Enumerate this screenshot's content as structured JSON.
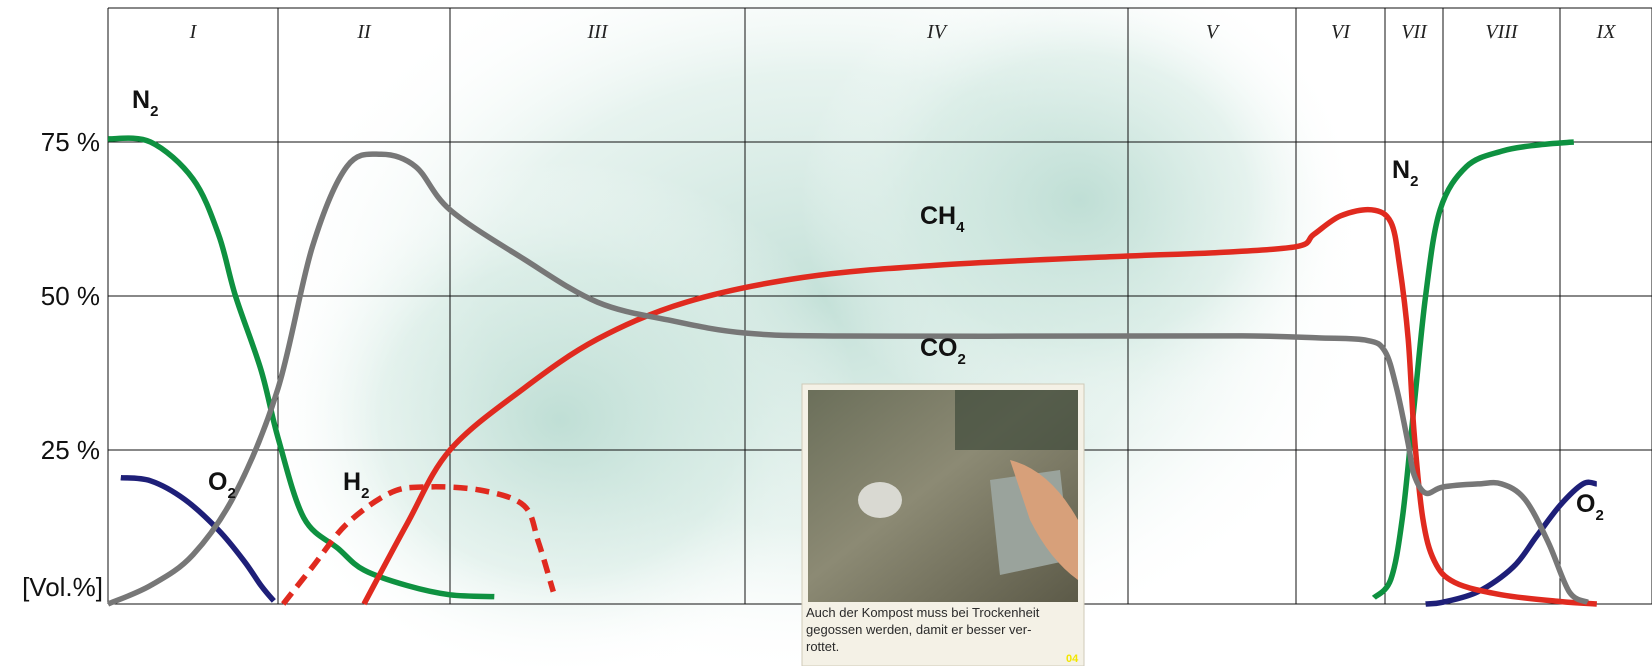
{
  "chart_data": {
    "type": "line",
    "title": "",
    "y_unit_label": "[Vol.%]",
    "y_ticks": [
      {
        "value": 25,
        "label": "25 %"
      },
      {
        "value": 50,
        "label": "50 %"
      },
      {
        "value": 75,
        "label": "75 %"
      }
    ],
    "ylim": [
      0,
      100
    ],
    "x_label": "",
    "phases": [
      "I",
      "II",
      "III",
      "IV",
      "V",
      "VI",
      "VII",
      "VIII",
      "IX"
    ],
    "x_unit": "phase position (0 = start of phase I, 9 = end of phase IX)",
    "grid": true,
    "series": [
      {
        "name": "N2",
        "label_main": "N",
        "label_sub": "2",
        "color": "#0e9140",
        "style": "solid",
        "points": [
          [
            0.0,
            75.5
          ],
          [
            0.5,
            75
          ],
          [
            1.0,
            69
          ],
          [
            1.3,
            60
          ],
          [
            1.5,
            50
          ],
          [
            1.8,
            38
          ],
          [
            2.0,
            27
          ],
          [
            2.3,
            14
          ],
          [
            2.7,
            9
          ],
          [
            3.0,
            5.5
          ],
          [
            3.5,
            3
          ],
          [
            4.0,
            1.5
          ],
          [
            4.3,
            1.2
          ]
        ]
      },
      {
        "name": "N2",
        "label_main": "N",
        "label_sub": "2",
        "color": "#0e9140",
        "style": "solid",
        "points": [
          [
            11.75,
            1
          ],
          [
            12.2,
            4
          ],
          [
            12.6,
            14
          ],
          [
            13.0,
            32
          ],
          [
            13.4,
            50
          ],
          [
            13.9,
            64
          ],
          [
            14.4,
            71
          ],
          [
            15.0,
            73.5
          ],
          [
            15.6,
            74.5
          ],
          [
            16.3,
            75
          ]
        ]
      },
      {
        "name": "O2",
        "label_main": "O",
        "label_sub": "2",
        "color": "#1e1f78",
        "style": "solid",
        "points": [
          [
            0.15,
            20.5
          ],
          [
            0.5,
            20
          ],
          [
            0.9,
            17
          ],
          [
            1.3,
            12
          ],
          [
            1.6,
            7
          ],
          [
            1.8,
            3
          ],
          [
            1.95,
            0.5
          ]
        ]
      },
      {
        "name": "O2",
        "label_main": "O",
        "label_sub": "2",
        "color": "#1e1f78",
        "style": "solid",
        "points": [
          [
            13.4,
            0
          ],
          [
            14.0,
            0.3
          ],
          [
            14.6,
            2
          ],
          [
            15.2,
            6
          ],
          [
            15.6,
            11
          ],
          [
            16.0,
            16
          ],
          [
            16.5,
            19.5
          ],
          [
            16.8,
            19.5
          ]
        ]
      },
      {
        "name": "H2",
        "label_main": "H",
        "label_sub": "2",
        "color": "#e02a1f",
        "style": "dashed",
        "points": [
          [
            2.06,
            0
          ],
          [
            2.4,
            6
          ],
          [
            2.8,
            13
          ],
          [
            3.3,
            18
          ],
          [
            3.7,
            19
          ],
          [
            4.2,
            18.5
          ],
          [
            4.5,
            16
          ],
          [
            4.6,
            10
          ],
          [
            4.7,
            2
          ]
        ]
      },
      {
        "name": "CH4",
        "label_main": "CH",
        "label_sub": "4",
        "color": "#e02a1f",
        "style": "solid",
        "points": [
          [
            3.0,
            0
          ],
          [
            3.5,
            13
          ],
          [
            4.0,
            25
          ],
          [
            4.5,
            35
          ],
          [
            5.0,
            43
          ],
          [
            5.6,
            49
          ],
          [
            6.3,
            53
          ],
          [
            7.0,
            55
          ],
          [
            8.0,
            56.5
          ],
          [
            9.0,
            57
          ],
          [
            10.0,
            58
          ],
          [
            10.4,
            60
          ],
          [
            11.0,
            63
          ],
          [
            11.7,
            64
          ],
          [
            12.2,
            62
          ],
          [
            12.5,
            55
          ],
          [
            12.8,
            43
          ],
          [
            13.0,
            28
          ],
          [
            13.3,
            14
          ],
          [
            13.7,
            7
          ],
          [
            14.2,
            3.5
          ],
          [
            15.0,
            1.5
          ],
          [
            16.0,
            0.4
          ],
          [
            16.8,
            0
          ]
        ]
      },
      {
        "name": "CO2",
        "label_main": "CO",
        "label_sub": "2",
        "color": "#777777",
        "style": "solid",
        "points": [
          [
            0.0,
            0
          ],
          [
            0.5,
            3
          ],
          [
            1.0,
            8
          ],
          [
            1.5,
            18
          ],
          [
            2.0,
            35
          ],
          [
            2.4,
            58
          ],
          [
            2.8,
            71
          ],
          [
            3.2,
            73
          ],
          [
            3.6,
            71
          ],
          [
            4.0,
            64
          ],
          [
            4.5,
            56
          ],
          [
            5.0,
            49
          ],
          [
            5.5,
            46
          ],
          [
            6.0,
            44
          ],
          [
            6.5,
            43.5
          ],
          [
            8.0,
            43.5
          ],
          [
            9.5,
            43.5
          ],
          [
            10.5,
            43.2
          ],
          [
            11.6,
            42.8
          ],
          [
            12.0,
            41
          ],
          [
            12.4,
            35
          ],
          [
            12.8,
            26
          ],
          [
            13.0,
            21
          ],
          [
            13.4,
            18
          ],
          [
            14.0,
            19
          ],
          [
            14.6,
            19.5
          ],
          [
            15.0,
            19.5
          ],
          [
            15.4,
            17
          ],
          [
            15.8,
            10
          ],
          [
            16.2,
            2
          ],
          [
            16.6,
            0.3
          ]
        ]
      }
    ],
    "annotations": [
      {
        "for": "N2 (left)",
        "main": "N",
        "sub": "2"
      },
      {
        "for": "N2 (right)",
        "main": "N",
        "sub": "2"
      },
      {
        "for": "O2 (left)",
        "main": "O",
        "sub": "2"
      },
      {
        "for": "O2 (right)",
        "main": "O",
        "sub": "2"
      },
      {
        "for": "H2",
        "main": "H",
        "sub": "2"
      },
      {
        "for": "CH4",
        "main": "CH",
        "sub": "4"
      },
      {
        "for": "CO2",
        "main": "CO",
        "sub": "2"
      }
    ]
  },
  "photo": {
    "caption_lines": [
      "Auch der Kompost muss bei Trockenheit",
      "gegossen werden, damit er besser ver-",
      "rottet."
    ],
    "badge": "04"
  }
}
